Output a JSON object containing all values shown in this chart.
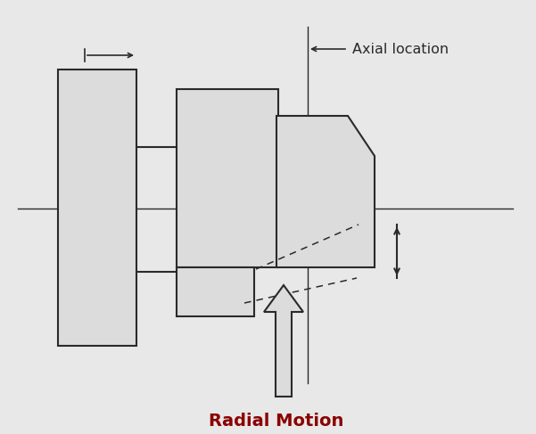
{
  "bg_color": "#e8e8e8",
  "line_color": "#2a2a2a",
  "fill_color": "#dcdcdc",
  "white_fill": "#e8e8e8",
  "title_color": "#8b0000",
  "title_text": "Radial Motion",
  "axial_label": "Axial location",
  "figsize": [
    6.01,
    4.87
  ],
  "dpi": 100
}
